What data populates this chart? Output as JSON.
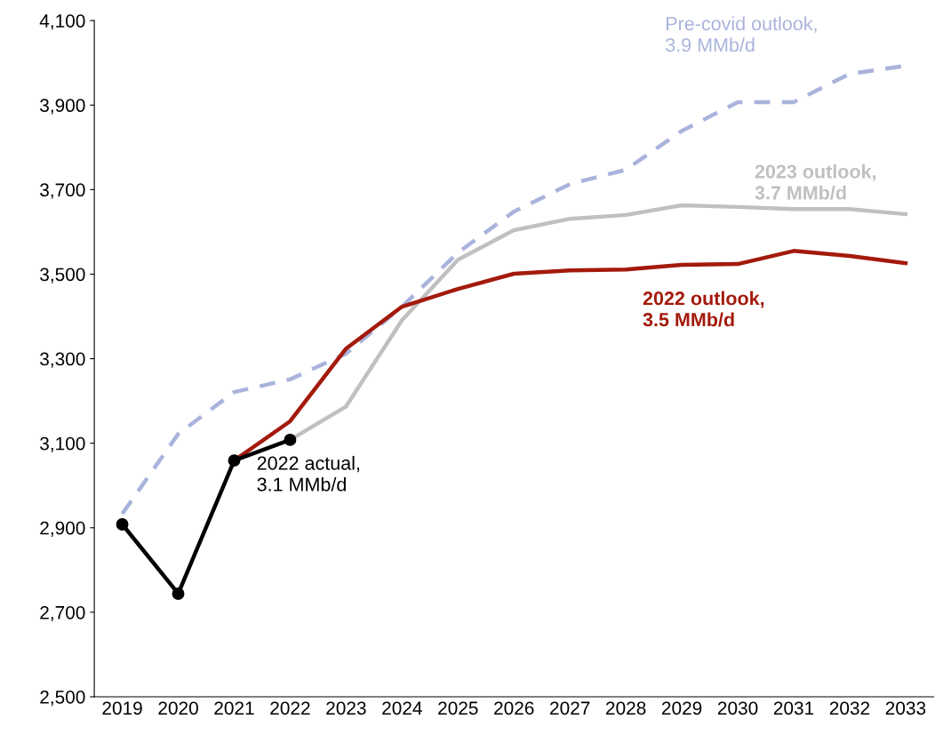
{
  "chart_data": {
    "type": "line",
    "categories": [
      "2019",
      "2020",
      "2021",
      "2022",
      "2023",
      "2024",
      "2025",
      "2026",
      "2027",
      "2028",
      "2029",
      "2030",
      "2031",
      "2032",
      "2033"
    ],
    "ylim": [
      2500,
      4100
    ],
    "yticks": [
      {
        "value": 2500,
        "label": "2,500"
      },
      {
        "value": 2700,
        "label": "2,700"
      },
      {
        "value": 2900,
        "label": "2,900"
      },
      {
        "value": 3100,
        "label": "3,100"
      },
      {
        "value": 3300,
        "label": "3,300"
      },
      {
        "value": 3500,
        "label": "3,500"
      },
      {
        "value": 3700,
        "label": "3,700"
      },
      {
        "value": 3900,
        "label": "3,900"
      },
      {
        "value": 4100,
        "label": "4,100"
      }
    ],
    "grid": false,
    "legend": false,
    "series": [
      {
        "name": "Pre-covid outlook,\n3.9 MMb/d",
        "color": "#a9b3dc",
        "line_style": "dashed",
        "marker": "none",
        "values": [
          2933,
          3122,
          3221,
          3251,
          3312,
          3423,
          3551,
          3648,
          3713,
          3747,
          3839,
          3907,
          3907,
          3974,
          3993
        ]
      },
      {
        "name": "2023 outlook,\n3.7 MMb/d",
        "color": "#c0c0c0",
        "line_style": "solid",
        "marker": "none",
        "values": [
          null,
          null,
          null,
          3108,
          3187,
          3391,
          3534,
          3604,
          3631,
          3640,
          3663,
          3659,
          3654,
          3654,
          3642
        ]
      },
      {
        "name": "2022 outlook,\n3.5 MMb/d",
        "color": "#a31a0c",
        "line_style": "solid",
        "marker": "none",
        "values": [
          null,
          null,
          3059,
          3152,
          3324,
          3423,
          3465,
          3501,
          3509,
          3511,
          3522,
          3524,
          3555,
          3543,
          3526
        ]
      },
      {
        "name": "2022 actual,\n3.1 MMb/d",
        "color": "#000000",
        "line_style": "solid",
        "marker": "circle",
        "values": [
          2908,
          2744,
          3059,
          3108,
          null,
          null,
          null,
          null,
          null,
          null,
          null,
          null,
          null,
          null,
          null
        ]
      }
    ]
  }
}
